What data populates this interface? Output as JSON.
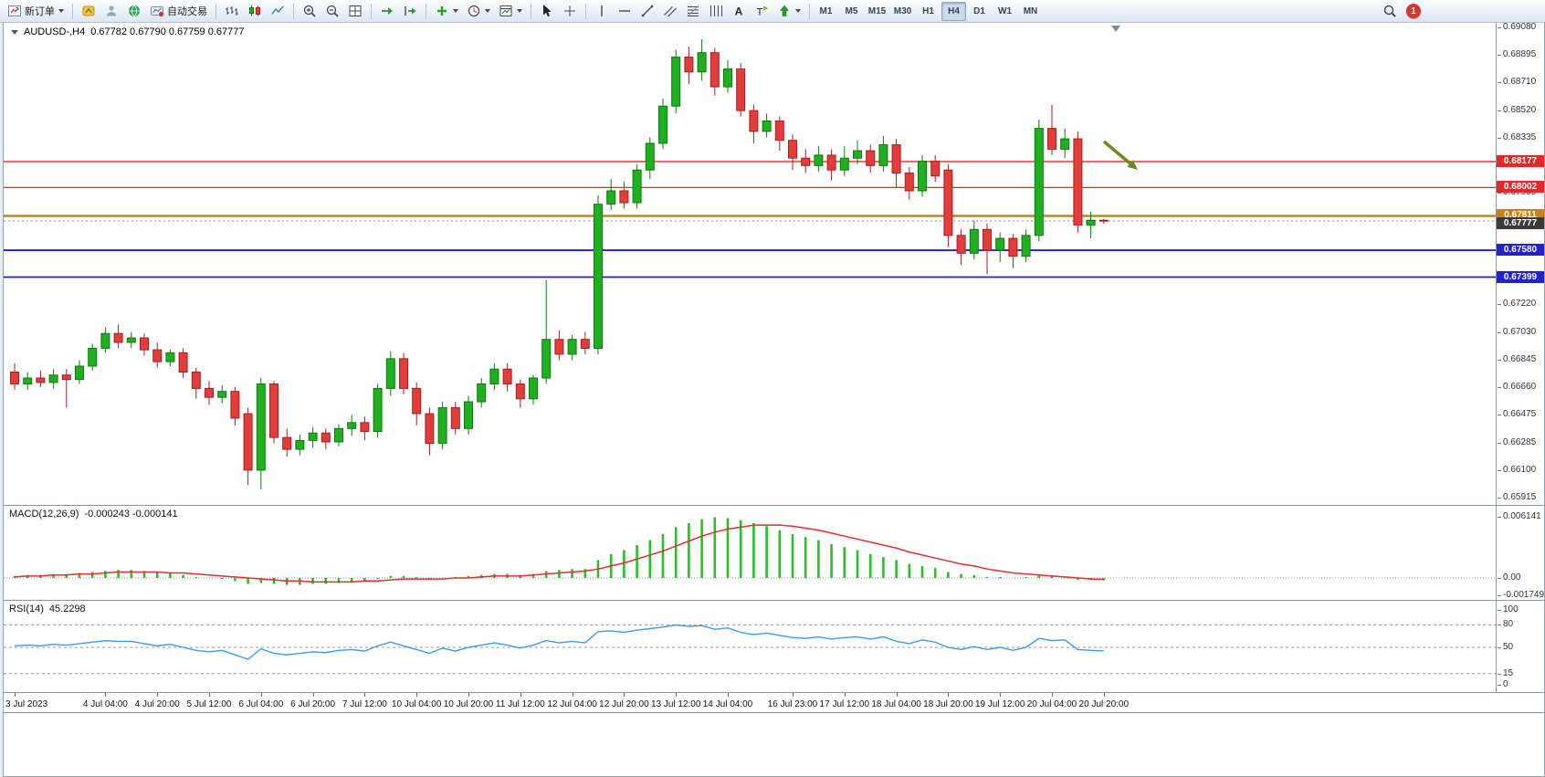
{
  "toolbar": {
    "items": [
      {
        "name": "new-order-button",
        "icon": "new-order",
        "label": "新订单",
        "dropdown": true
      },
      {
        "sep": true
      },
      {
        "name": "market-button",
        "icon": "market"
      },
      {
        "name": "signals-button",
        "icon": "signals"
      },
      {
        "name": "community-button",
        "icon": "community"
      },
      {
        "name": "autotrading-button",
        "icon": "autotrading",
        "label": "自动交易"
      },
      {
        "sep": true
      },
      {
        "name": "bar-chart-button",
        "icon": "bars"
      },
      {
        "name": "candlestick-chart-button",
        "icon": "candles"
      },
      {
        "name": "line-chart-button",
        "icon": "line"
      },
      {
        "sep": true
      },
      {
        "name": "zoom-in-button",
        "icon": "zoom-in"
      },
      {
        "name": "zoom-out-button",
        "icon": "zoom-out"
      },
      {
        "name": "tile-windows-button",
        "icon": "tile"
      },
      {
        "sep": true
      },
      {
        "name": "auto-scroll-button",
        "icon": "autoscroll"
      },
      {
        "name": "chart-shift-button",
        "icon": "chartshift"
      },
      {
        "sep": true
      },
      {
        "name": "indicators-button",
        "icon": "add-indicator",
        "dropdown": true
      },
      {
        "name": "periods-button",
        "icon": "clock",
        "dropdown": true
      },
      {
        "name": "templates-button",
        "icon": "template",
        "dropdown": true
      },
      {
        "sep": true
      },
      {
        "name": "cursor-button",
        "icon": "cursor"
      },
      {
        "name": "crosshair-button",
        "icon": "crosshair"
      },
      {
        "sep": true
      },
      {
        "name": "vertical-line-button",
        "icon": "vline"
      },
      {
        "name": "horizontal-line-button",
        "icon": "hline"
      },
      {
        "name": "trendline-button",
        "icon": "trendline"
      },
      {
        "name": "equidistant-channel-button",
        "icon": "channel"
      },
      {
        "name": "fibonacci-button",
        "icon": "fibo"
      },
      {
        "name": "cycle-lines-button",
        "icon": "cycles"
      },
      {
        "name": "text-button",
        "icon": "text"
      },
      {
        "name": "text-label-button",
        "icon": "textlabel"
      },
      {
        "name": "arrows-button",
        "icon": "arrow",
        "dropdown": true
      },
      {
        "sep": true
      }
    ],
    "timeframes": [
      "M1",
      "M5",
      "M15",
      "M30",
      "H1",
      "H4",
      "D1",
      "W1",
      "MN"
    ],
    "active_timeframe": "H4",
    "notification_count": "1"
  },
  "chart": {
    "symbol": "AUDUSD-,H4",
    "ohlc_text": "0.67782 0.67790 0.67759 0.67777",
    "price_top": 0.6908,
    "price_bottom": 0.65915,
    "price_axis_labels": [
      "0.69080",
      "0.68895",
      "0.68710",
      "0.68520",
      "0.68335",
      "0.68150",
      "0.67965",
      "0.67775",
      "0.67590",
      "0.67405",
      "0.67220",
      "0.67030",
      "0.66845",
      "0.66660",
      "0.66475",
      "0.66285",
      "0.66100",
      "0.65915"
    ],
    "current_price": "0.67777",
    "current_badge_color": "#3a3a3a",
    "up_color": "#1EB01E",
    "up_border": "#0E7A0E",
    "down_color": "#E43B3B",
    "down_border": "#A02222",
    "hlines": [
      {
        "name": "resistance-line-1",
        "price": 0.68177,
        "label": "0.68177",
        "color": "#E02A2A",
        "width": 1.3
      },
      {
        "name": "resistance-line-2",
        "price": 0.68002,
        "label": "0.68002",
        "color": "#E02A2A",
        "width": 1.3
      },
      {
        "name": "pivot-line",
        "price": 0.67811,
        "label": "0.67811",
        "color": "#C8821A",
        "width": 2.4
      },
      {
        "name": "support-line-1",
        "price": 0.6758,
        "label": "0.67580",
        "color": "#2222CC",
        "width": 1.8
      },
      {
        "name": "support-line-2",
        "price": 0.67399,
        "label": "0.67399",
        "color": "#2222CC",
        "width": 1.8
      }
    ],
    "arrow": {
      "color": "#6E8B22",
      "from": [
        1205,
        130
      ],
      "to": [
        1242,
        161
      ]
    }
  },
  "macd_panel": {
    "label": "MACD(12,26,9)",
    "values": "-0.000243 -0.000141",
    "axis": [
      {
        "text": "0.006141",
        "v": 0.006141
      },
      {
        "text": "0.00",
        "v": 0
      },
      {
        "text": "-0.001749",
        "v": -0.001749
      }
    ],
    "hist_color": "#2BBE2B",
    "signal_color": "#E03030"
  },
  "rsi_panel": {
    "label": "RSI(14)",
    "value": "45.2298",
    "axis": [
      "100",
      "80",
      "50",
      "15",
      "0"
    ],
    "levels": [
      80,
      50,
      15
    ],
    "line_color": "#3D9BE9"
  },
  "time_axis": {
    "labels": [
      {
        "t": "3 Jul 2023",
        "i": 0
      },
      {
        "t": "4 Jul 04:00",
        "i": 7
      },
      {
        "t": "4 Jul 20:00",
        "i": 11
      },
      {
        "t": "5 Jul 12:00",
        "i": 15
      },
      {
        "t": "6 Jul 04:00",
        "i": 19
      },
      {
        "t": "6 Jul 20:00",
        "i": 23
      },
      {
        "t": "7 Jul 12:00",
        "i": 27
      },
      {
        "t": "10 Jul 04:00",
        "i": 31
      },
      {
        "t": "10 Jul 20:00",
        "i": 35
      },
      {
        "t": "11 Jul 12:00",
        "i": 39
      },
      {
        "t": "12 Jul 04:00",
        "i": 43
      },
      {
        "t": "12 Jul 20:00",
        "i": 47
      },
      {
        "t": "13 Jul 12:00",
        "i": 51
      },
      {
        "t": "14 Jul 04:00",
        "i": 55
      },
      {
        "t": "16 Jul 23:00",
        "i": 60
      },
      {
        "t": "17 Jul 12:00",
        "i": 64
      },
      {
        "t": "18 Jul 04:00",
        "i": 68
      },
      {
        "t": "18 Jul 20:00",
        "i": 72
      },
      {
        "t": "19 Jul 12:00",
        "i": 76
      },
      {
        "t": "20 Jul 04:00",
        "i": 80
      },
      {
        "t": "20 Jul 20:00",
        "i": 84
      }
    ]
  },
  "chart_data": {
    "type": "candlestick",
    "symbol": "AUDUSD",
    "timeframe": "H4",
    "candles_ohlc": [
      [
        0.6676,
        0.6682,
        0.6664,
        0.6668
      ],
      [
        0.6668,
        0.6676,
        0.6664,
        0.6672
      ],
      [
        0.6672,
        0.6677,
        0.6666,
        0.6669
      ],
      [
        0.6669,
        0.6678,
        0.6665,
        0.6674
      ],
      [
        0.6674,
        0.6678,
        0.6652,
        0.6671
      ],
      [
        0.6671,
        0.6684,
        0.6668,
        0.668
      ],
      [
        0.668,
        0.6695,
        0.6677,
        0.6692
      ],
      [
        0.6692,
        0.6706,
        0.6689,
        0.6702
      ],
      [
        0.6702,
        0.6708,
        0.6692,
        0.6696
      ],
      [
        0.6696,
        0.6703,
        0.6692,
        0.6699
      ],
      [
        0.6699,
        0.6702,
        0.6687,
        0.6691
      ],
      [
        0.6691,
        0.6696,
        0.6679,
        0.6683
      ],
      [
        0.6683,
        0.6691,
        0.668,
        0.6689
      ],
      [
        0.6689,
        0.6692,
        0.6672,
        0.6676
      ],
      [
        0.6676,
        0.6679,
        0.6658,
        0.6665
      ],
      [
        0.6665,
        0.667,
        0.6654,
        0.6659
      ],
      [
        0.6659,
        0.6667,
        0.6655,
        0.6663
      ],
      [
        0.6663,
        0.6666,
        0.664,
        0.6645
      ],
      [
        0.6648,
        0.6652,
        0.66,
        0.661
      ],
      [
        0.661,
        0.6672,
        0.6597,
        0.6668
      ],
      [
        0.6668,
        0.667,
        0.6628,
        0.6632
      ],
      [
        0.6632,
        0.6638,
        0.6619,
        0.6624
      ],
      [
        0.6624,
        0.6634,
        0.662,
        0.663
      ],
      [
        0.663,
        0.6639,
        0.6625,
        0.6635
      ],
      [
        0.6635,
        0.6638,
        0.6624,
        0.6629
      ],
      [
        0.6629,
        0.6641,
        0.6626,
        0.6638
      ],
      [
        0.6638,
        0.6647,
        0.6633,
        0.6642
      ],
      [
        0.6642,
        0.6646,
        0.663,
        0.6636
      ],
      [
        0.6636,
        0.6668,
        0.6632,
        0.6665
      ],
      [
        0.6665,
        0.669,
        0.666,
        0.6685
      ],
      [
        0.6685,
        0.6689,
        0.6661,
        0.6665
      ],
      [
        0.6665,
        0.6669,
        0.664,
        0.6648
      ],
      [
        0.6648,
        0.6652,
        0.662,
        0.6628
      ],
      [
        0.6628,
        0.6656,
        0.6624,
        0.6652
      ],
      [
        0.6652,
        0.6656,
        0.6634,
        0.6638
      ],
      [
        0.6638,
        0.666,
        0.6634,
        0.6656
      ],
      [
        0.6656,
        0.6672,
        0.6652,
        0.6668
      ],
      [
        0.6668,
        0.6682,
        0.6664,
        0.6678
      ],
      [
        0.6678,
        0.6682,
        0.6663,
        0.6668
      ],
      [
        0.6668,
        0.6671,
        0.6652,
        0.6658
      ],
      [
        0.6658,
        0.6674,
        0.6654,
        0.6672
      ],
      [
        0.6672,
        0.6738,
        0.6668,
        0.6698
      ],
      [
        0.6698,
        0.6704,
        0.6684,
        0.6688
      ],
      [
        0.6688,
        0.6701,
        0.6684,
        0.6698
      ],
      [
        0.6698,
        0.6703,
        0.6688,
        0.6692
      ],
      [
        0.6692,
        0.6795,
        0.6688,
        0.6789
      ],
      [
        0.6789,
        0.6806,
        0.6785,
        0.6798
      ],
      [
        0.6798,
        0.6804,
        0.6786,
        0.679
      ],
      [
        0.679,
        0.6816,
        0.6786,
        0.6812
      ],
      [
        0.6812,
        0.6834,
        0.6806,
        0.683
      ],
      [
        0.683,
        0.686,
        0.6826,
        0.6855
      ],
      [
        0.6855,
        0.6893,
        0.685,
        0.6888
      ],
      [
        0.6888,
        0.6895,
        0.687,
        0.6878
      ],
      [
        0.6878,
        0.69,
        0.6872,
        0.6891
      ],
      [
        0.6891,
        0.6894,
        0.6862,
        0.6868
      ],
      [
        0.6868,
        0.6886,
        0.6864,
        0.688
      ],
      [
        0.688,
        0.6884,
        0.6848,
        0.6852
      ],
      [
        0.6852,
        0.6856,
        0.683,
        0.6838
      ],
      [
        0.6838,
        0.685,
        0.6834,
        0.6845
      ],
      [
        0.6845,
        0.6848,
        0.6825,
        0.6832
      ],
      [
        0.6832,
        0.6836,
        0.6812,
        0.682
      ],
      [
        0.682,
        0.6826,
        0.681,
        0.6815
      ],
      [
        0.6815,
        0.6828,
        0.6811,
        0.6822
      ],
      [
        0.6822,
        0.6826,
        0.6805,
        0.6812
      ],
      [
        0.6812,
        0.6828,
        0.6808,
        0.682
      ],
      [
        0.682,
        0.6832,
        0.6816,
        0.6825
      ],
      [
        0.6825,
        0.6829,
        0.681,
        0.6815
      ],
      [
        0.6815,
        0.6835,
        0.6811,
        0.6829
      ],
      [
        0.6829,
        0.6833,
        0.68,
        0.681
      ],
      [
        0.681,
        0.6814,
        0.6792,
        0.6798
      ],
      [
        0.6798,
        0.6822,
        0.6794,
        0.6818
      ],
      [
        0.6818,
        0.6822,
        0.6804,
        0.6808
      ],
      [
        0.6812,
        0.6816,
        0.676,
        0.6768
      ],
      [
        0.6768,
        0.6772,
        0.6748,
        0.6756
      ],
      [
        0.6756,
        0.6778,
        0.6752,
        0.6772
      ],
      [
        0.6772,
        0.6776,
        0.6742,
        0.6758
      ],
      [
        0.6758,
        0.677,
        0.675,
        0.6766
      ],
      [
        0.6766,
        0.6769,
        0.6746,
        0.6754
      ],
      [
        0.6754,
        0.6772,
        0.675,
        0.6768
      ],
      [
        0.6768,
        0.6846,
        0.6764,
        0.684
      ],
      [
        0.684,
        0.6856,
        0.6822,
        0.6826
      ],
      [
        0.6826,
        0.684,
        0.682,
        0.6833
      ],
      [
        0.6833,
        0.6838,
        0.677,
        0.6775
      ],
      [
        0.6775,
        0.6784,
        0.6766,
        0.67782
      ],
      [
        0.67782,
        0.6779,
        0.67759,
        0.67777
      ]
    ],
    "macd": {
      "histogram": [
        0.0002,
        0.0003,
        0.0003,
        0.0004,
        0.0004,
        0.0005,
        0.0006,
        0.0007,
        0.0008,
        0.0008,
        0.0007,
        0.0006,
        0.0005,
        0.0003,
        0.0001,
        0.0,
        -0.0001,
        -0.0003,
        -0.0006,
        -0.0005,
        -0.0006,
        -0.0007,
        -0.0007,
        -0.0006,
        -0.0006,
        -0.0005,
        -0.0004,
        -0.0003,
        -0.0001,
        0.0002,
        0.0002,
        0.0001,
        -0.0001,
        0.0,
        0.0001,
        0.0002,
        0.0003,
        0.0004,
        0.0004,
        0.0003,
        0.0004,
        0.0007,
        0.0008,
        0.0009,
        0.0009,
        0.0018,
        0.0024,
        0.0028,
        0.0033,
        0.0038,
        0.0044,
        0.0051,
        0.0055,
        0.0059,
        0.0061,
        0.006,
        0.0058,
        0.0055,
        0.0052,
        0.0048,
        0.0044,
        0.0041,
        0.0038,
        0.0034,
        0.0031,
        0.0028,
        0.0024,
        0.0021,
        0.0018,
        0.0014,
        0.0012,
        0.001,
        0.0006,
        0.0004,
        0.0003,
        0.0001,
        0.0001,
        0.0,
        0.0001,
        0.0003,
        0.0002,
        0.0001,
        -0.0002,
        -0.0002,
        -0.000243
      ],
      "signal": [
        0.0001,
        0.0002,
        0.0002,
        0.0003,
        0.0003,
        0.0004,
        0.0004,
        0.0005,
        0.0006,
        0.0006,
        0.0006,
        0.0006,
        0.0005,
        0.0005,
        0.0004,
        0.0003,
        0.0002,
        0.0001,
        0.0,
        -0.0001,
        -0.0002,
        -0.0003,
        -0.0003,
        -0.0004,
        -0.0004,
        -0.0004,
        -0.0004,
        -0.0003,
        -0.0003,
        -0.0002,
        -0.0001,
        -0.0001,
        -0.0001,
        -0.0001,
        0.0,
        0.0,
        0.0001,
        0.0002,
        0.0002,
        0.0002,
        0.0003,
        0.0004,
        0.0005,
        0.0006,
        0.0007,
        0.0009,
        0.0012,
        0.0015,
        0.0019,
        0.0023,
        0.0027,
        0.0032,
        0.0037,
        0.0042,
        0.0046,
        0.0049,
        0.0051,
        0.0053,
        0.0053,
        0.0053,
        0.0052,
        0.005,
        0.0048,
        0.0045,
        0.0042,
        0.0039,
        0.0036,
        0.0033,
        0.003,
        0.0026,
        0.0023,
        0.002,
        0.0017,
        0.0014,
        0.0012,
        0.0009,
        0.0007,
        0.0005,
        0.0004,
        0.0003,
        0.0002,
        0.0001,
        0.0,
        -0.0001,
        -0.000141
      ]
    },
    "rsi": [
      52,
      53,
      52,
      54,
      53,
      55,
      57,
      59,
      58,
      58,
      55,
      52,
      54,
      50,
      46,
      44,
      46,
      40,
      34,
      48,
      42,
      40,
      42,
      44,
      43,
      46,
      47,
      45,
      52,
      57,
      52,
      47,
      42,
      49,
      45,
      50,
      53,
      56,
      53,
      49,
      53,
      59,
      56,
      58,
      56,
      71,
      72,
      70,
      73,
      75,
      77,
      80,
      78,
      79,
      74,
      76,
      70,
      67,
      69,
      66,
      63,
      62,
      64,
      61,
      63,
      64,
      61,
      64,
      58,
      55,
      60,
      57,
      50,
      47,
      51,
      47,
      50,
      46,
      50,
      62,
      59,
      60,
      47,
      46,
      45.2298
    ]
  }
}
